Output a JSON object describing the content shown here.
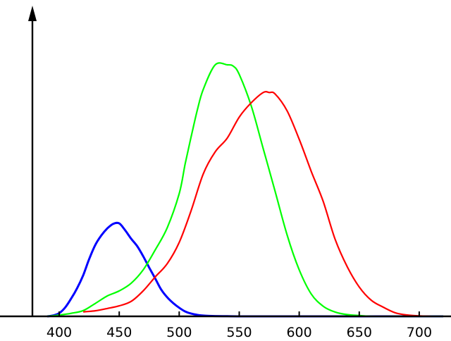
{
  "chart_data": {
    "type": "line",
    "title": "",
    "xlabel": "",
    "ylabel": "",
    "xlim": [
      380,
      725
    ],
    "ylim": [
      0,
      1
    ],
    "x_ticks": [
      400,
      450,
      500,
      550,
      600,
      650,
      700
    ],
    "x_tick_labels": [
      "400",
      "450",
      "500",
      "550",
      "600",
      "650",
      "700"
    ],
    "grid": false,
    "legend": "none",
    "series": [
      {
        "color": "#0000ff",
        "x": [
          390,
          395,
          400,
          405,
          410,
          415,
          420,
          425,
          430,
          435,
          440,
          445,
          450,
          455,
          460,
          465,
          470,
          475,
          480,
          485,
          490,
          495,
          500,
          505,
          510,
          515,
          520,
          525,
          530,
          540,
          550,
          560,
          580,
          600,
          650,
          700,
          720
        ],
        "values": [
          0.0,
          0.006,
          0.021,
          0.059,
          0.118,
          0.187,
          0.272,
          0.38,
          0.472,
          0.535,
          0.582,
          0.613,
          0.616,
          0.57,
          0.514,
          0.465,
          0.398,
          0.323,
          0.251,
          0.177,
          0.126,
          0.088,
          0.057,
          0.032,
          0.018,
          0.01,
          0.005,
          0.003,
          0.002,
          0.001,
          0.0,
          0.0,
          0.0,
          0.0,
          0.0,
          0.0,
          0.0
        ]
      },
      {
        "color": "#00ff00",
        "x": [
          390,
          400,
          410,
          420,
          430,
          440,
          450,
          460,
          470,
          480,
          490,
          500,
          505,
          510,
          515,
          520,
          530,
          540,
          545,
          550,
          560,
          570,
          580,
          590,
          600,
          610,
          620,
          630,
          640,
          650,
          660,
          680,
          700,
          720
        ],
        "values": [
          0.0,
          0.005,
          0.012,
          0.023,
          0.051,
          0.081,
          0.101,
          0.132,
          0.185,
          0.264,
          0.352,
          0.488,
          0.607,
          0.715,
          0.818,
          0.902,
          1.0,
          1.0,
          0.995,
          0.962,
          0.837,
          0.667,
          0.496,
          0.322,
          0.185,
          0.089,
          0.04,
          0.017,
          0.007,
          0.003,
          0.0,
          0.0,
          0.0,
          0.0
        ]
      },
      {
        "color": "#ff0000",
        "x": [
          420,
          430,
          440,
          450,
          460,
          470,
          480,
          490,
          500,
          510,
          520,
          530,
          540,
          550,
          560,
          570,
          575,
          580,
          590,
          600,
          610,
          620,
          630,
          640,
          650,
          660,
          670,
          680,
          690,
          700,
          710
        ],
        "values": [
          0.02,
          0.025,
          0.035,
          0.047,
          0.067,
          0.114,
          0.176,
          0.235,
          0.33,
          0.473,
          0.636,
          0.735,
          0.796,
          0.89,
          0.954,
          1.0,
          1.0,
          0.993,
          0.917,
          0.791,
          0.648,
          0.513,
          0.343,
          0.222,
          0.131,
          0.072,
          0.041,
          0.016,
          0.006,
          0.002,
          0.0
        ]
      }
    ],
    "series_scale": [
      0.6,
      1.0,
      0.89
    ]
  }
}
